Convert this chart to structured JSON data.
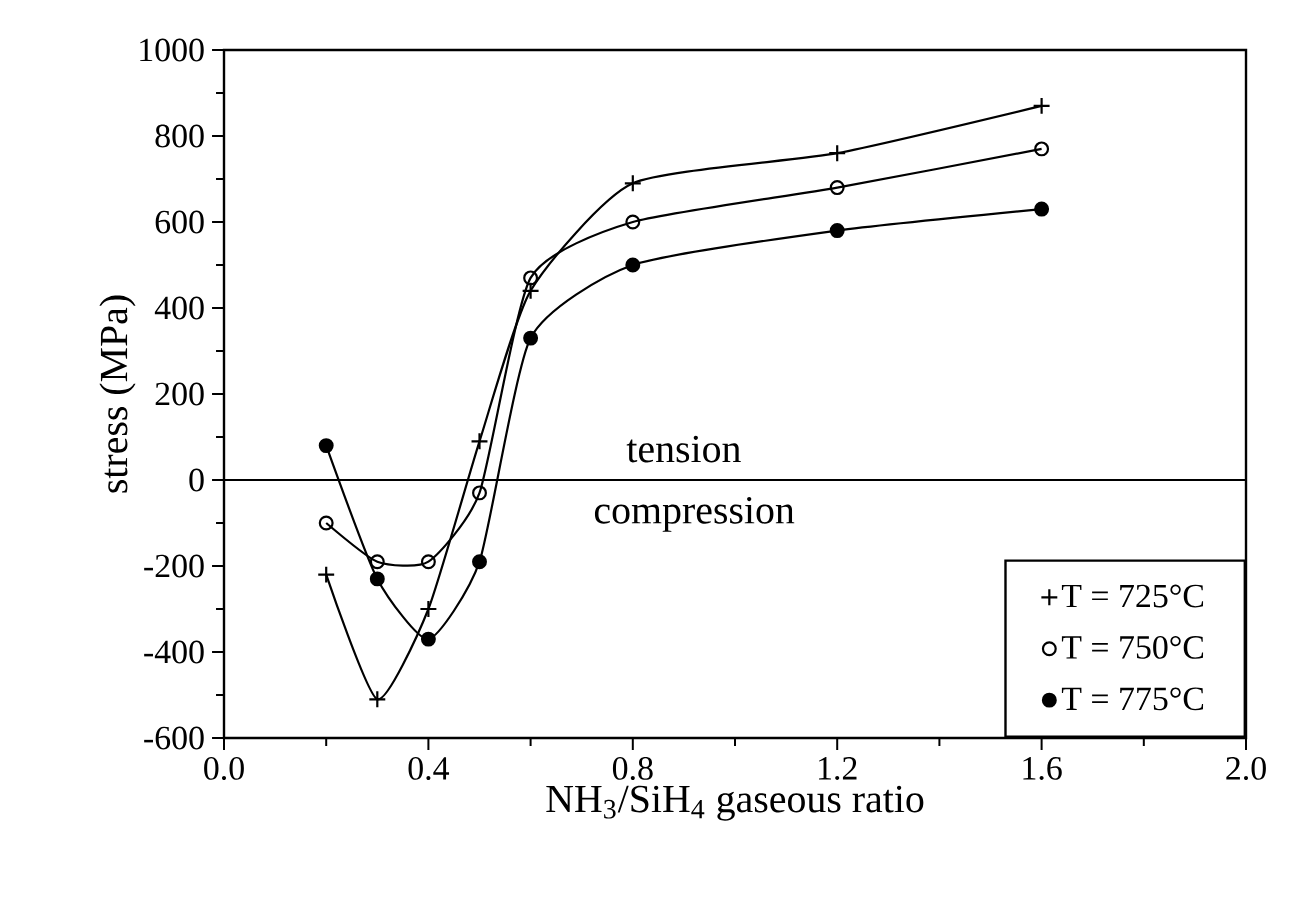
{
  "chart_data": {
    "type": "line",
    "xlabel": "NH$_{3}$/SiH$_{4}$ gaseous ratio",
    "ylabel": "stress (MPa)",
    "x": [
      0.2,
      0.3,
      0.4,
      0.5,
      0.6,
      0.8,
      1.2,
      1.6
    ],
    "series": [
      {
        "name": "T = 725°C",
        "color": "#000000",
        "marker": "cross",
        "values": [
          -220,
          -510,
          -300,
          90,
          440,
          690,
          760,
          870
        ]
      },
      {
        "name": "T = 750°C",
        "color": "#000000",
        "marker": "circle",
        "values": [
          -100,
          -190,
          -190,
          -30,
          470,
          600,
          680,
          770
        ]
      },
      {
        "name": "T = 775°C",
        "color": "#000000",
        "marker": "filled circle",
        "values": [
          80,
          -230,
          -370,
          -190,
          330,
          500,
          580,
          630
        ]
      }
    ],
    "xlim": [
      0,
      2.0
    ],
    "ylim": [
      -600,
      1000
    ],
    "xticks": [
      {
        "value": 0,
        "label": "0.0"
      },
      {
        "value": 0.4,
        "label": "0.4"
      },
      {
        "value": 0.8,
        "label": "0.8"
      },
      {
        "value": 1.2,
        "label": "1.2"
      },
      {
        "value": 1.6,
        "label": "1.6"
      },
      {
        "value": 2.0,
        "label": "2.0"
      }
    ],
    "yticks": [
      -600,
      -400,
      -200,
      0,
      200,
      400,
      600,
      800,
      1000
    ],
    "ref_lines": [
      {
        "axis": "y",
        "value": 0,
        "color": "#000000"
      }
    ],
    "annotations": [
      "tension",
      "compression"
    ],
    "legend": "bottom right",
    "grid": false,
    "line_style": "solid"
  }
}
